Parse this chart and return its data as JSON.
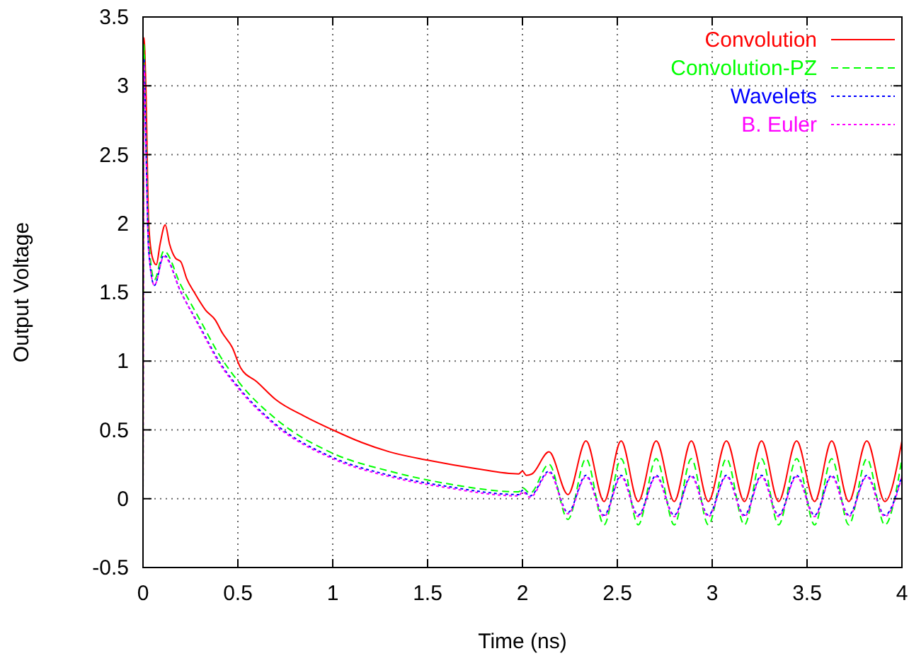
{
  "chart_data": {
    "type": "line",
    "xlabel": "Time (ns)",
    "ylabel": "Output Voltage",
    "xlim": [
      0,
      4
    ],
    "ylim": [
      -0.5,
      3.5
    ],
    "xticks": [
      0,
      0.5,
      1,
      1.5,
      2,
      2.5,
      3,
      3.5,
      4
    ],
    "yticks": [
      -0.5,
      0,
      0.5,
      1,
      1.5,
      2,
      2.5,
      3,
      3.5
    ],
    "grid": true,
    "legend": "top right",
    "marker": "none",
    "series": [
      {
        "name": "Convolution",
        "color": "#ff0000",
        "line_style": "solid",
        "x": [
          0,
          0.005,
          0.015,
          0.03,
          0.05,
          0.07,
          0.09,
          0.117,
          0.14,
          0.17,
          0.2,
          0.23,
          0.27,
          0.33,
          0.38,
          0.42,
          0.47,
          0.515,
          0.6,
          0.7,
          0.85,
          1.0,
          1.15,
          1.3,
          1.5,
          1.75,
          1.98,
          2.0,
          2.02,
          2.05,
          2.14,
          2.24,
          2.335,
          2.43,
          2.52,
          2.61,
          2.705,
          2.8,
          2.89,
          2.98,
          3.075,
          3.17,
          3.26,
          3.35,
          3.445,
          3.54,
          3.63,
          3.72,
          3.815,
          3.91,
          4.0
        ],
        "values": [
          0,
          3.35,
          3.0,
          2.0,
          1.75,
          1.7,
          1.85,
          1.99,
          1.85,
          1.75,
          1.72,
          1.6,
          1.5,
          1.37,
          1.3,
          1.2,
          1.1,
          0.95,
          0.85,
          0.72,
          0.6,
          0.5,
          0.41,
          0.34,
          0.28,
          0.22,
          0.18,
          0.2,
          0.17,
          0.18,
          0.34,
          0.03,
          0.42,
          -0.02,
          0.42,
          -0.02,
          0.42,
          -0.02,
          0.42,
          -0.02,
          0.42,
          -0.02,
          0.42,
          -0.02,
          0.42,
          -0.02,
          0.42,
          -0.02,
          0.42,
          -0.02,
          0.42
        ]
      },
      {
        "name": "Convolution-PZ",
        "color": "#00ff00",
        "line_style": "dashed",
        "x": [
          0,
          0.005,
          0.015,
          0.03,
          0.06,
          0.11,
          0.2,
          0.3,
          0.4,
          0.515,
          0.7,
          1.0,
          1.3,
          1.6,
          1.98,
          2.0,
          2.04,
          2.14,
          2.24,
          2.335,
          2.43,
          2.52,
          2.61,
          2.705,
          2.8,
          2.89,
          2.98,
          3.075,
          3.17,
          3.26,
          3.35,
          3.445,
          3.54,
          3.63,
          3.72,
          3.815,
          3.91,
          4.0
        ],
        "values": [
          0,
          3.3,
          2.7,
          1.9,
          1.59,
          1.8,
          1.55,
          1.3,
          1.05,
          0.83,
          0.58,
          0.33,
          0.2,
          0.11,
          0.05,
          0.08,
          0.04,
          0.25,
          -0.15,
          0.29,
          -0.19,
          0.29,
          -0.19,
          0.29,
          -0.19,
          0.29,
          -0.19,
          0.29,
          -0.19,
          0.29,
          -0.19,
          0.29,
          -0.19,
          0.29,
          -0.19,
          0.29,
          -0.19,
          0.29
        ]
      },
      {
        "name": "Wavelets",
        "color": "#0000ff",
        "line_style": "dotted",
        "x": [
          0,
          0.005,
          0.015,
          0.03,
          0.06,
          0.11,
          0.2,
          0.3,
          0.4,
          0.515,
          0.7,
          1.0,
          1.3,
          1.6,
          1.98,
          2.0,
          2.04,
          2.14,
          2.24,
          2.335,
          2.43,
          2.52,
          2.61,
          2.705,
          2.8,
          2.89,
          2.98,
          3.075,
          3.17,
          3.26,
          3.35,
          3.445,
          3.54,
          3.63,
          3.72,
          3.815,
          3.91,
          4.0
        ],
        "values": [
          0,
          3.2,
          2.6,
          1.8,
          1.55,
          1.77,
          1.5,
          1.25,
          1.0,
          0.79,
          0.54,
          0.3,
          0.17,
          0.09,
          0.03,
          0.06,
          0.02,
          0.2,
          -0.1,
          0.17,
          -0.12,
          0.17,
          -0.12,
          0.17,
          -0.12,
          0.17,
          -0.12,
          0.17,
          -0.12,
          0.17,
          -0.12,
          0.17,
          -0.12,
          0.17,
          -0.12,
          0.17,
          -0.12,
          0.17
        ]
      },
      {
        "name": "B. Euler",
        "color": "#ff00ff",
        "line_style": "dotted",
        "x": [
          0,
          0.005,
          0.015,
          0.03,
          0.06,
          0.11,
          0.2,
          0.3,
          0.4,
          0.515,
          0.7,
          1.0,
          1.3,
          1.6,
          1.98,
          2.0,
          2.04,
          2.14,
          2.24,
          2.335,
          2.43,
          2.52,
          2.61,
          2.705,
          2.8,
          2.89,
          2.98,
          3.075,
          3.17,
          3.26,
          3.35,
          3.445,
          3.54,
          3.63,
          3.72,
          3.815,
          3.91,
          4.0
        ],
        "values": [
          0,
          3.15,
          2.55,
          1.8,
          1.55,
          1.76,
          1.5,
          1.24,
          0.99,
          0.78,
          0.53,
          0.29,
          0.16,
          0.08,
          0.02,
          0.05,
          0.01,
          0.19,
          -0.11,
          0.16,
          -0.13,
          0.16,
          -0.13,
          0.16,
          -0.13,
          0.16,
          -0.13,
          0.16,
          -0.13,
          0.16,
          -0.13,
          0.16,
          -0.13,
          0.16,
          -0.13,
          0.16,
          -0.13,
          0.16
        ]
      }
    ]
  }
}
